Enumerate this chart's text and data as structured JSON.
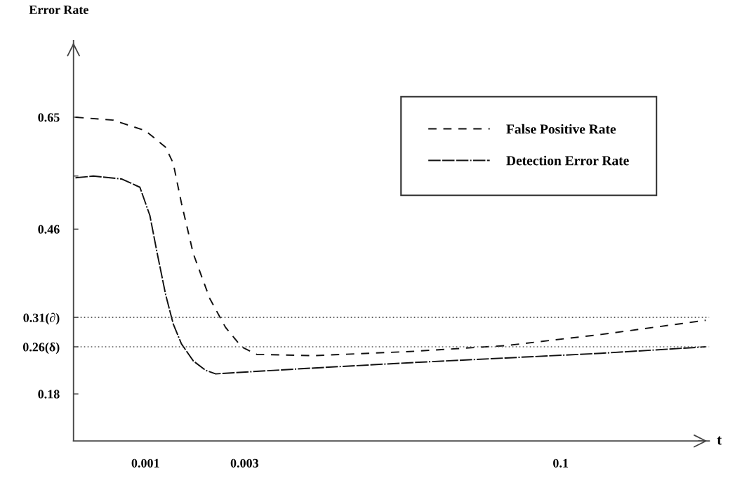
{
  "chart_data": {
    "type": "line",
    "ylabel": "Error Rate",
    "xlabel": "t",
    "log": "x",
    "xlim": [
      0.00045,
      0.52
    ],
    "xticks": [
      0.001,
      0.003,
      0.1
    ],
    "ylim": [
      0.1,
      0.78
    ],
    "yticks": [
      0.65,
      {
        "value": 0.55,
        "label": null
      },
      0.46,
      {
        "value": 0.31,
        "label": "0.31(∂)"
      },
      {
        "value": 0.26,
        "label": "0.26(δ)"
      },
      0.18
    ],
    "grid": false,
    "legend": "top right",
    "marker": "none",
    "ref_lines": [
      {
        "axis": "y",
        "value": 0.31,
        "line_style": "dotted",
        "color": "#555555"
      },
      {
        "axis": "y",
        "value": 0.26,
        "line_style": "dotted",
        "color": "#555555"
      }
    ],
    "series": [
      {
        "name": "False Positive Rate",
        "color": "#111111",
        "line_style": "dashed",
        "x": [
          0.00046,
          0.0007,
          0.001,
          0.00125,
          0.00136,
          0.00149,
          0.0017,
          0.00204,
          0.00243,
          0.0029,
          0.00344,
          0.0065,
          0.0188,
          0.0543,
          0.157,
          0.5
        ],
        "values": [
          0.65,
          0.645,
          0.627,
          0.599,
          0.572,
          0.504,
          0.418,
          0.342,
          0.293,
          0.26,
          0.247,
          0.245,
          0.252,
          0.262,
          0.281,
          0.305
        ]
      },
      {
        "name": "Detection Error Rate",
        "color": "#111111",
        "line_style": "dashed",
        "x": [
          0.00046,
          0.00056,
          0.00077,
          0.00094,
          0.00105,
          0.00114,
          0.00125,
          0.00136,
          0.00149,
          0.0017,
          0.00195,
          0.00218,
          0.00266,
          0.0065,
          0.0188,
          0.0543,
          0.157,
          0.5
        ],
        "values": [
          0.547,
          0.55,
          0.545,
          0.531,
          0.483,
          0.418,
          0.349,
          0.299,
          0.265,
          0.236,
          0.22,
          0.214,
          0.216,
          0.224,
          0.233,
          0.241,
          0.249,
          0.26
        ]
      }
    ]
  }
}
